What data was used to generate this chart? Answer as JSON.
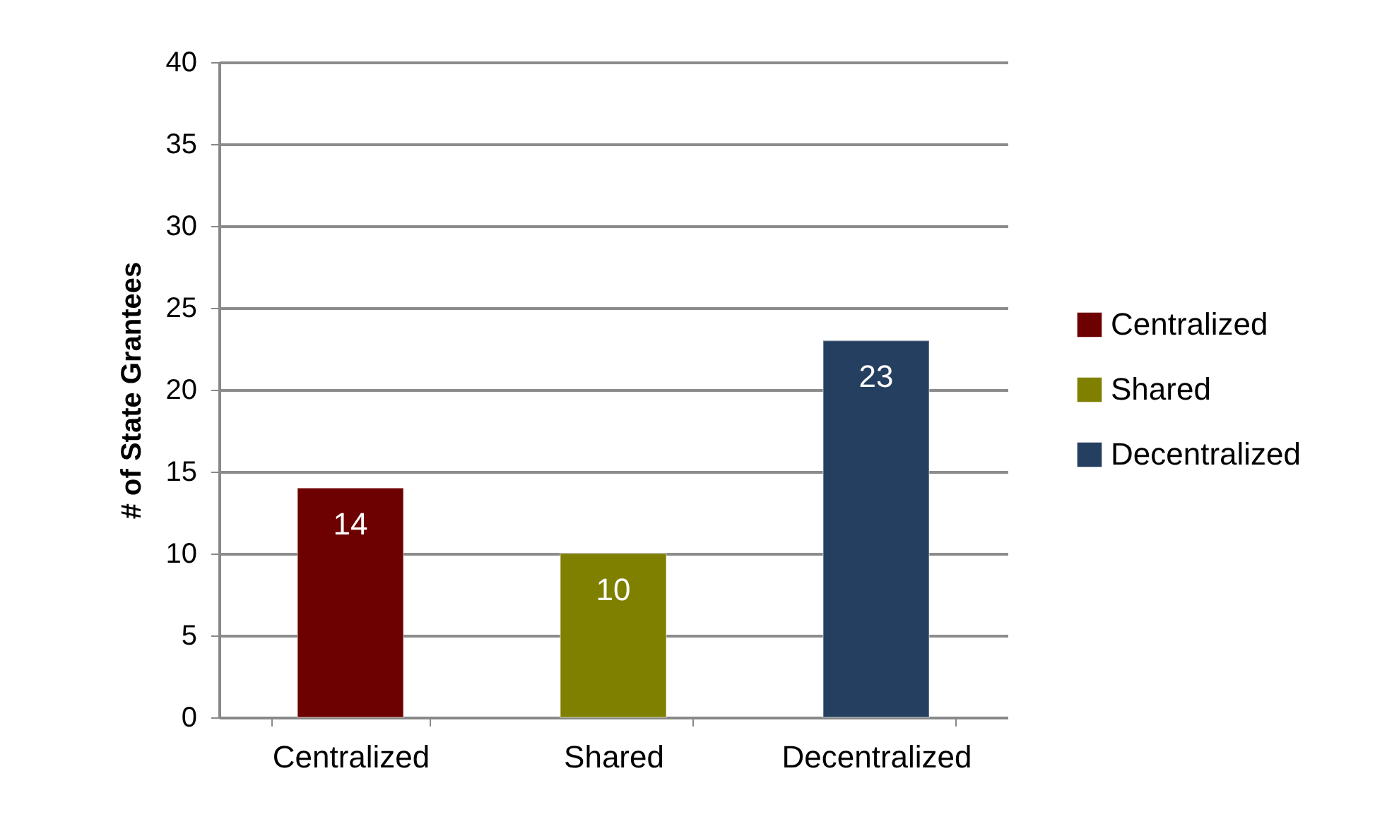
{
  "chart_data": {
    "type": "bar",
    "ylabel": "# of State Grantees",
    "categories": [
      "Centralized",
      "Shared",
      "Decentralized"
    ],
    "series": [
      {
        "name": "Centralized",
        "color": "#6d0000",
        "values": [
          14,
          null,
          null
        ]
      },
      {
        "name": "Shared",
        "color": "#7f7f00",
        "values": [
          null,
          10,
          null
        ]
      },
      {
        "name": "Decentralized",
        "color": "#243f60",
        "values": [
          null,
          null,
          23
        ]
      }
    ],
    "ylim": [
      0,
      40
    ],
    "yticks": [
      0,
      5,
      10,
      15,
      20,
      25,
      30,
      35,
      40
    ],
    "grid": "y",
    "legend": "right",
    "data_labels": true
  }
}
